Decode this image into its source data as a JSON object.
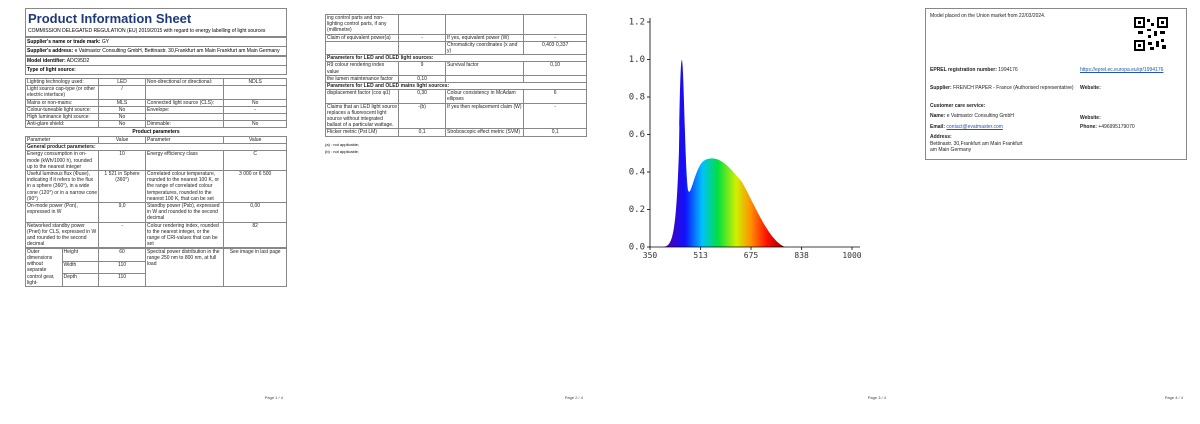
{
  "page1": {
    "title": "Product Information Sheet",
    "regulation": "COMMISSION DELEGATED REGULATION (EU) 2019/2015 with regard to energy labelling of light sources",
    "supplier_name": {
      "label": "Supplier's name or trade mark:",
      "value": "GY"
    },
    "supplier_address": {
      "label": "Supplier's address:",
      "value": "e Vatmastcr Consulting GmbH, Bettinastr. 30,Frankfurt am Main Frankfurt am Main Germany"
    },
    "model": {
      "label": "Model identifier:",
      "value": "ADC95D2"
    },
    "type_heading": "Type of light source:",
    "type_table": [
      [
        "Lighting technology used:",
        "LED",
        "Non-directional or directional:",
        "NDLS"
      ],
      [
        "Light source cap-type (or other electric interface)",
        "/"
      ],
      [
        "Mains or non-mains:",
        "MLS",
        "Connected light source (CLS):",
        "No"
      ],
      [
        "Colour-tuneable light source:",
        "No",
        "Envelope:",
        "-"
      ],
      [
        "High luminance light source:",
        "No"
      ],
      [
        "Anti-glare shield:",
        "No",
        "Dimmable:",
        "No"
      ]
    ],
    "params_heading": "Product parameters",
    "params_table": [
      [
        "Parameter",
        "Value",
        "Parameter",
        "Value"
      ],
      "General product parameters:",
      [
        "Energy consumption in on-mode (kWh/1000 h), rounded up to the nearest integer",
        "10",
        "Energy efficiency class",
        "C"
      ],
      [
        "Useful luminous flux (Φuse), indicating if it refers to the flux in a sphere (360°), in a wide cone (120°) or in a narrow cone (90°)",
        "1 521 in Sphere (360°)",
        "Correlated colour temperature, rounded to the nearest 100 K, or the range of correlated colour temperatures, rounded to the nearest 100 K, that can be set",
        "3 000 or 6 500"
      ],
      [
        "On-mode power (Pon), expressed in W",
        "9,0",
        "Standby power (Psb), expressed in W and rounded to the second decimal",
        "0,00"
      ],
      [
        "Networked standby power (Pnet) for CLS, expressed in W and rounded to the second decimal",
        "-",
        "Colour rendering index, rounded to the nearest integer, or the range of CRI-values that can be set",
        "82"
      ]
    ],
    "dimensions": {
      "label": "Outer dimensions without separate control gear, light-",
      "items": [
        {
          "name": "Height",
          "value": "60"
        },
        {
          "name": "Width",
          "value": "110"
        },
        {
          "name": "Depth",
          "value": "110"
        }
      ],
      "spd_label": "Spectral power distribution in the range 250 nm to 800 nm, at full load",
      "spd_value": "See image in last page"
    },
    "footer": "Page 1 / 4"
  },
  "page2": {
    "table": [
      [
        "ing control parts and non-lighting control parts, if any (millimetre)"
      ],
      [
        "Claim of equivalent power(a)",
        "-",
        "If yes, equivalent power (W)",
        "-"
      ],
      [
        null,
        null,
        "Chromaticity coordinates (x and y)",
        "0,403 0,337"
      ],
      "Parameters for LED and OLED light sources:",
      [
        "R9 colour rendering index value",
        "9",
        "Survival factor",
        "0,10"
      ],
      [
        "the lumen maintenance factor",
        "0,10"
      ],
      "Parameters for LED and OLED mains light sources:",
      [
        "displacement factor (cos φ1)",
        "0,30",
        "Colour consistency in McAdam ellipses",
        "6"
      ],
      [
        "Claims that an LED light source replaces a fluorescent light source without integrated ballast of a particular wattage.",
        "-(b)",
        "If yes then replacement claim (W)",
        "-"
      ],
      [
        "Flicker metric (Pst LM)",
        "0,1",
        "Stroboscopic effect metric (SVM)",
        "0,1"
      ]
    ],
    "notes": [
      "(a)  : not applicable;",
      "(b)  : not applicable;"
    ],
    "footer": "Page 2 / 4"
  },
  "page3": {
    "spectrum": {
      "xlim": [
        350,
        1000
      ],
      "ylim": [
        0,
        1.2
      ],
      "xticks": [
        350,
        513,
        675,
        838,
        1000
      ],
      "yticks": [
        {
          "value": 0,
          "label": "0.0"
        },
        {
          "value": 0.2,
          "label": "0.2"
        },
        {
          "value": 0.4,
          "label": "0.4"
        },
        {
          "value": 0.6,
          "label": "0.6"
        },
        {
          "value": 0.8,
          "label": "0.8"
        },
        {
          "value": 1,
          "label": "1.0"
        },
        {
          "value": 1.2,
          "label": "1.2"
        }
      ]
    },
    "footer": "Page 3 / 4"
  },
  "page4": {
    "placed": "Model placed on the Union market from 22/03/2024.",
    "eprel": {
      "label": "EPREL registration number:",
      "value": "1994176",
      "url": "https://eprel.ec.europa.eu/qr/1994176"
    },
    "supplier": {
      "label": "Supplier:",
      "value": "FRENCH PAPER - France (Authorised representative)",
      "website": "Website:"
    },
    "customer_care": "Customer care service:",
    "name": {
      "label": "Name:",
      "value": "e Vatmastcr Consulting GmbH",
      "website": "Website:"
    },
    "email": {
      "label": "Email:",
      "value": "contact@evatmaster.com",
      "phone_label": "Phone:",
      "phone": "+496995179070"
    },
    "address": {
      "label": "Address:",
      "value": "Bettinastr. 30,Frankfurt am Main Frankfurt am Main Germany"
    },
    "footer": "Page 4 / 4"
  }
}
